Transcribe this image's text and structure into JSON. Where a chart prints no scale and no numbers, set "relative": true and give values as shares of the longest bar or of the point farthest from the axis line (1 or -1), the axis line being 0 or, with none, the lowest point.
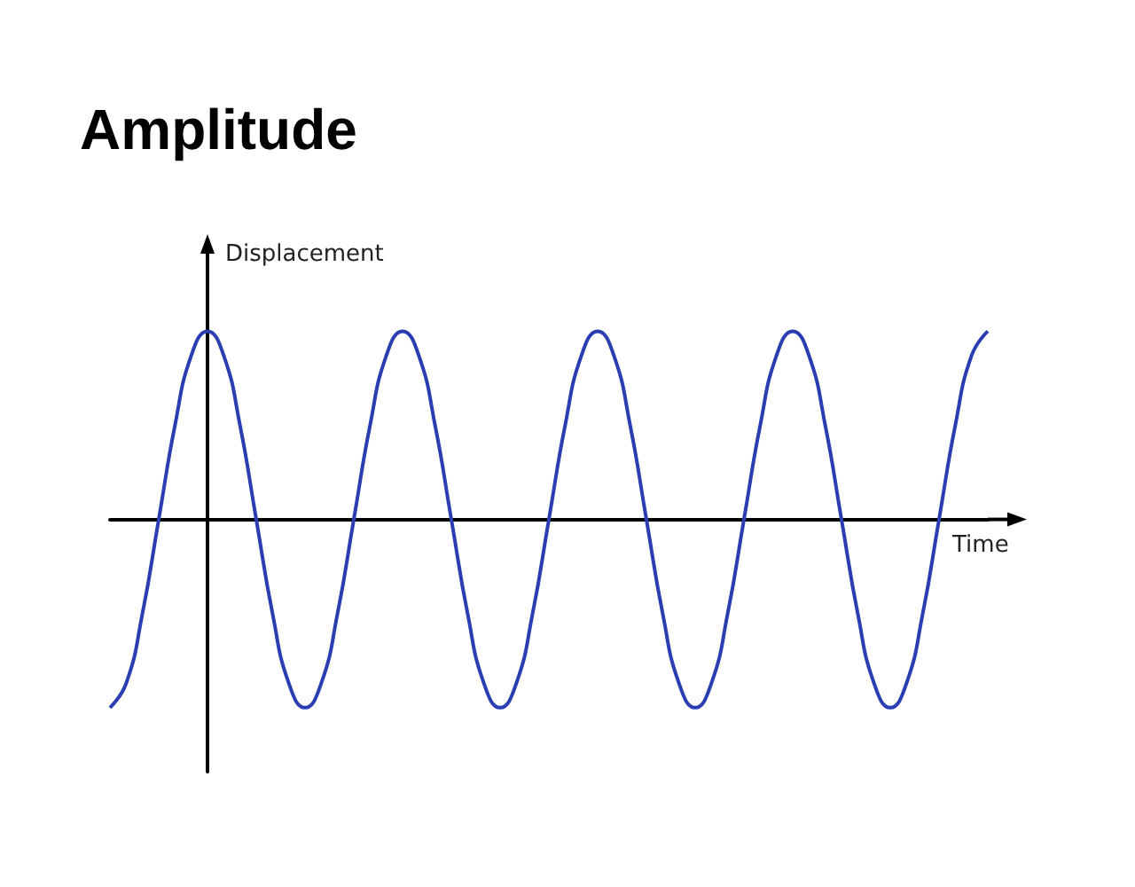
{
  "chart_data": {
    "type": "line",
    "title": "Amplitude",
    "xlabel": "Time",
    "ylabel": "Displacement",
    "relative": true,
    "color": "#2a3eb1",
    "categories": [
      null,
      null,
      null,
      null,
      null,
      null,
      null,
      null,
      null,
      null,
      null,
      null,
      null,
      null,
      null,
      null,
      null,
      null,
      null,
      null,
      null,
      null,
      null,
      null,
      null,
      null,
      null,
      null,
      null,
      null,
      null,
      null,
      null,
      null,
      null,
      null,
      null,
      null,
      null,
      null,
      null,
      null,
      null,
      null,
      null,
      null,
      null,
      null,
      null,
      null,
      null,
      null,
      null,
      null,
      null
    ],
    "values": [
      -1,
      -0.87,
      -0.5,
      0,
      0.5,
      0.87,
      1,
      0.87,
      0.5,
      0,
      -0.5,
      -0.87,
      -1,
      -0.87,
      -0.5,
      0,
      0.5,
      0.87,
      1,
      0.87,
      0.5,
      0,
      -0.5,
      -0.87,
      -1,
      -0.87,
      -0.5,
      0,
      0.5,
      0.87,
      1,
      0.87,
      0.5,
      0,
      -0.5,
      -0.87,
      -1,
      -0.87,
      -0.5,
      0,
      0.5,
      0.87,
      1,
      0.87,
      0.5,
      0,
      -0.5,
      -0.87,
      -1,
      -0.87,
      -0.5,
      0,
      0.5,
      0.87,
      1
    ]
  }
}
